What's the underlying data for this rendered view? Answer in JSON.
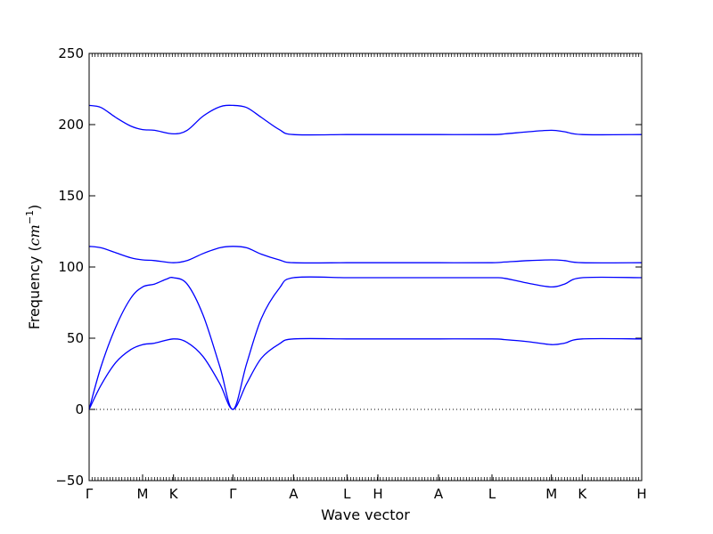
{
  "chart_data": {
    "type": "line",
    "xlabel": "Wave vector",
    "ylabel_prefix": "Frequency (",
    "ylabel_unit_base": "cm",
    "ylabel_unit_exp": "−1",
    "ylabel_suffix": ")",
    "ylim": [
      -50,
      250
    ],
    "yticks": [
      -50,
      0,
      50,
      100,
      150,
      200,
      250
    ],
    "ytick_labels": [
      "−50",
      "0",
      "50",
      "100",
      "150",
      "200",
      "250"
    ],
    "zero_line": true,
    "line_color": "#0000ff",
    "xlim": [
      0,
      9.3
    ],
    "xticks": [
      {
        "pos": 0.0,
        "label": "Γ"
      },
      {
        "pos": 0.9,
        "label": "M"
      },
      {
        "pos": 1.42,
        "label": "K"
      },
      {
        "pos": 2.42,
        "label": "Γ"
      },
      {
        "pos": 3.44,
        "label": "A"
      },
      {
        "pos": 4.34,
        "label": "L"
      },
      {
        "pos": 4.86,
        "label": "H"
      },
      {
        "pos": 5.88,
        "label": "A"
      },
      {
        "pos": 6.78,
        "label": "L"
      },
      {
        "pos": 7.78,
        "label": "M"
      },
      {
        "pos": 8.3,
        "label": "K"
      },
      {
        "pos": 9.3,
        "label": "H"
      }
    ],
    "series": [
      {
        "x": [
          0,
          0.2,
          0.45,
          0.7,
          0.9,
          1.1,
          1.42,
          1.65,
          1.92,
          2.2,
          2.42,
          2.65,
          2.9,
          3.2,
          3.44,
          4.34,
          4.86,
          5.88,
          6.78,
          7.0,
          7.4,
          7.78,
          8.0,
          8.3,
          9.3
        ],
        "y": [
          0,
          17,
          33,
          42,
          45.5,
          46.5,
          49.5,
          47,
          37,
          18,
          0,
          18,
          36,
          46,
          49.5,
          49.5,
          49.5,
          49.5,
          49.5,
          49,
          47.5,
          45.5,
          46.5,
          49.5,
          49.5
        ]
      },
      {
        "x": [
          0,
          0.2,
          0.45,
          0.7,
          0.9,
          1.1,
          1.3,
          1.42,
          1.65,
          1.92,
          2.2,
          2.42,
          2.65,
          2.9,
          3.2,
          3.44,
          4.34,
          4.86,
          5.88,
          6.78,
          7.0,
          7.4,
          7.78,
          8.0,
          8.3,
          9.3
        ],
        "y": [
          0,
          30,
          58,
          78,
          86,
          88,
          91.5,
          92.5,
          88,
          66,
          30,
          0,
          32,
          64,
          85,
          92.5,
          92.5,
          92.5,
          92.5,
          92.5,
          92,
          88.5,
          86,
          88,
          92.5,
          92.5
        ]
      },
      {
        "x": [
          0,
          0.2,
          0.45,
          0.7,
          0.9,
          1.1,
          1.42,
          1.65,
          1.92,
          2.2,
          2.42,
          2.65,
          2.9,
          3.2,
          3.44,
          4.34,
          4.86,
          5.88,
          6.78,
          7.0,
          7.4,
          7.78,
          8.0,
          8.3,
          9.3
        ],
        "y": [
          114.5,
          113.5,
          110,
          106.5,
          105,
          104.5,
          103,
          104.5,
          109.5,
          113.5,
          114.5,
          113.5,
          109,
          105,
          103,
          103,
          103,
          103,
          103,
          103.5,
          104.5,
          105,
          104.5,
          103,
          103
        ]
      },
      {
        "x": [
          0,
          0.2,
          0.45,
          0.7,
          0.9,
          1.1,
          1.42,
          1.65,
          1.92,
          2.2,
          2.42,
          2.65,
          2.9,
          3.2,
          3.44,
          4.34,
          4.86,
          5.88,
          6.78,
          7.0,
          7.4,
          7.78,
          8.0,
          8.3,
          9.3
        ],
        "y": [
          213.5,
          212,
          205,
          199,
          196.5,
          196,
          193.5,
          196,
          206,
          212.5,
          213.5,
          212,
          205,
          196.5,
          193,
          193,
          193,
          193,
          193,
          193.5,
          195,
          196,
          195,
          193,
          193
        ]
      }
    ]
  }
}
